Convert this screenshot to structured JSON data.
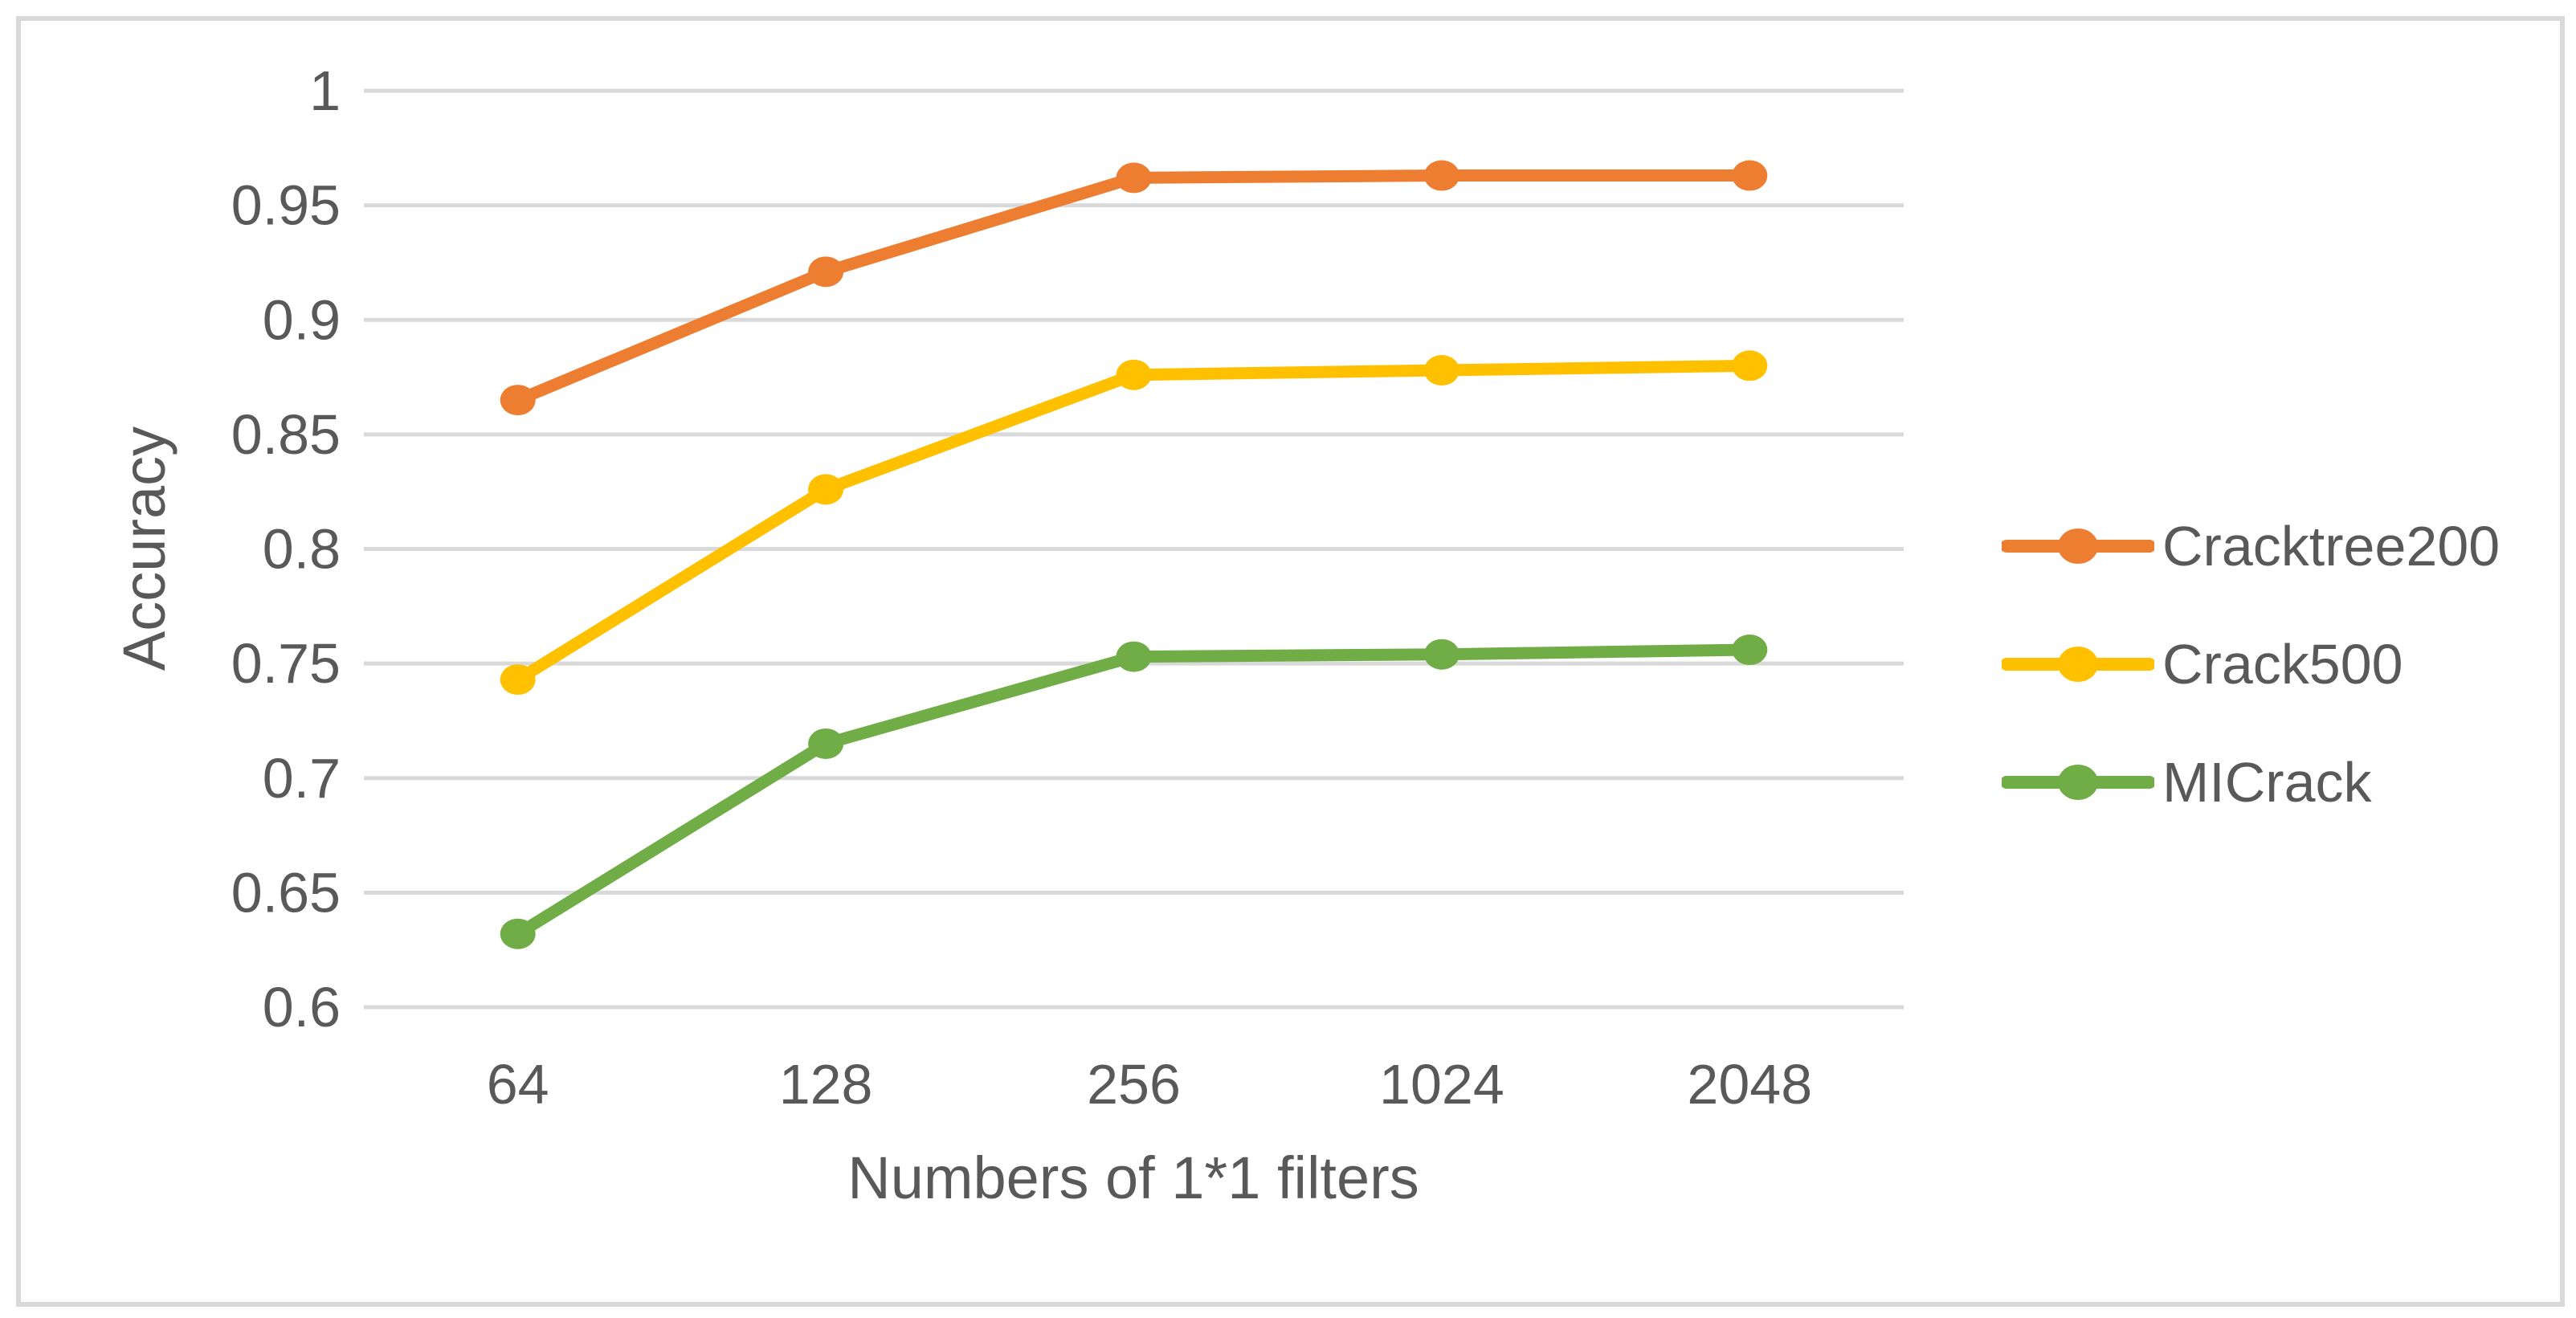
{
  "chart_data": {
    "type": "line",
    "title": "",
    "xlabel": "Numbers of 1*1 filters",
    "ylabel": "Accuracy",
    "categories": [
      "64",
      "128",
      "256",
      "1024",
      "2048"
    ],
    "series": [
      {
        "name": "Cracktree200",
        "color": "#ED7D31",
        "values": [
          0.865,
          0.921,
          0.962,
          0.963,
          0.963
        ]
      },
      {
        "name": "Crack500",
        "color": "#FFC000",
        "values": [
          0.743,
          0.826,
          0.876,
          0.878,
          0.88
        ]
      },
      {
        "name": "MICrack",
        "color": "#70AD47",
        "values": [
          0.632,
          0.715,
          0.753,
          0.754,
          0.756
        ]
      }
    ],
    "y_axis": {
      "min": 0.6,
      "max": 1.0,
      "step": 0.05,
      "tick_labels": [
        "1",
        "0.95",
        "0.9",
        "0.85",
        "0.8",
        "0.75",
        "0.7",
        "0.65",
        "0.6"
      ]
    },
    "grid": true,
    "legend_position": "right",
    "colors": {
      "grid": "#D9D9D9",
      "frame_border": "#D9D9D9",
      "text": "#595959",
      "background": "#FFFFFF"
    }
  }
}
